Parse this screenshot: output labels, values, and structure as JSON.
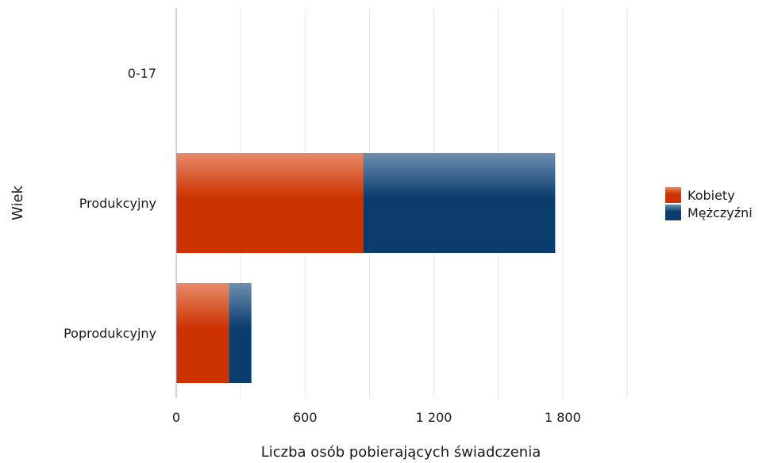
{
  "chart_data": {
    "type": "bar",
    "orientation": "horizontal",
    "stacked": true,
    "categories": [
      "0-17",
      "Produkcyjny",
      "Poprodukcyjny"
    ],
    "series": [
      {
        "name": "Kobiety",
        "values": [
          0,
          870,
          245
        ],
        "color": "#cc3300"
      },
      {
        "name": "Mężczyźni",
        "values": [
          0,
          895,
          105
        ],
        "color": "#0a3d6e"
      }
    ],
    "xlabel": "Liczba osób pobierających świadczenia",
    "ylabel": "Wiek",
    "xlim": [
      0,
      2100
    ],
    "xticks": [
      0,
      600,
      1200,
      1800
    ],
    "xtick_labels": [
      "0",
      "600",
      "1 200",
      "1 800"
    ],
    "grid": "vertical",
    "legend_position": "right"
  }
}
